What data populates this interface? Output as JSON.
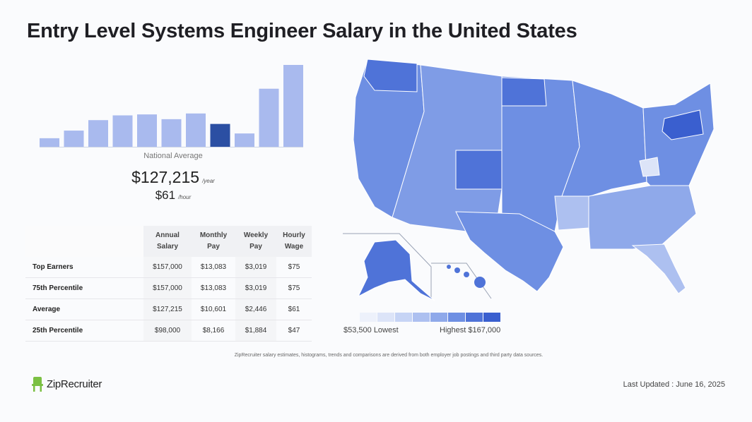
{
  "title": "Entry Level Systems Engineer Salary in the United States",
  "national_average": {
    "label": "National Average",
    "annual": "$127,215",
    "annual_unit": "/year",
    "hourly": "$61",
    "hourly_unit": "/hour"
  },
  "chart_data": {
    "type": "bar",
    "values": [
      9,
      17,
      28,
      33,
      34,
      29,
      35,
      24,
      14,
      61,
      86
    ],
    "highlight_index": 7,
    "colors": {
      "bar": "#a9baee",
      "highlight": "#2b4fa3",
      "baseline": "#cfd6e6"
    }
  },
  "table": {
    "headers": [
      [
        "Annual",
        "Salary"
      ],
      [
        "Monthly",
        "Pay"
      ],
      [
        "Weekly",
        "Pay"
      ],
      [
        "Hourly",
        "Wage"
      ]
    ],
    "rows": [
      {
        "label": "Top Earners",
        "annual": "$157,000",
        "monthly": "$13,083",
        "weekly": "$3,019",
        "hourly": "$75"
      },
      {
        "label": "75th Percentile",
        "annual": "$157,000",
        "monthly": "$13,083",
        "weekly": "$3,019",
        "hourly": "$75"
      },
      {
        "label": "Average",
        "annual": "$127,215",
        "monthly": "$10,601",
        "weekly": "$2,446",
        "hourly": "$61"
      },
      {
        "label": "25th Percentile",
        "annual": "$98,000",
        "monthly": "$8,166",
        "weekly": "$1,884",
        "hourly": "$47"
      }
    ]
  },
  "map": {
    "legend_low": "$53,500 Lowest",
    "legend_high": "Highest $167,000",
    "scale_colors": [
      "#edf1fb",
      "#dce4f8",
      "#c6d4f5",
      "#adc0f0",
      "#8fa9ea",
      "#6e8fe3",
      "#4f73d8",
      "#3a5fcf"
    ]
  },
  "footnote": "ZipRecruiter salary estimates, histograms, trends and comparisons are derived from both employer job postings and third party data sources.",
  "brand": "ZipRecruiter",
  "last_updated": "Last Updated : June 16, 2025"
}
